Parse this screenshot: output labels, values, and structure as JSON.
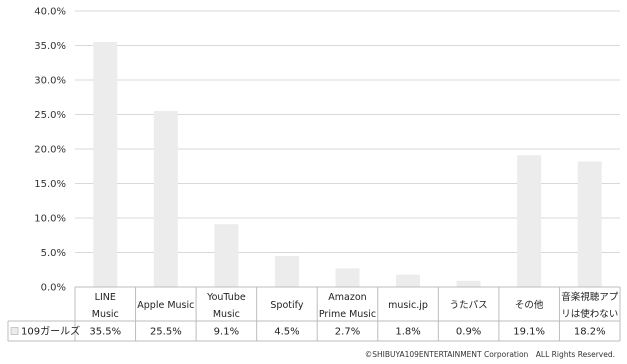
{
  "chart_data": {
    "type": "bar",
    "categories": [
      [
        "LINE",
        "Music"
      ],
      [
        "Apple Music"
      ],
      [
        "YouTube",
        "Music"
      ],
      [
        "Spotify"
      ],
      [
        "Amazon",
        "Prime Music"
      ],
      [
        "music.jp"
      ],
      [
        "うたパス"
      ],
      [
        "その他"
      ],
      [
        "音楽視聴アプ",
        "リは使わない"
      ]
    ],
    "series": [
      {
        "name": "109ガールズ",
        "values": [
          35.5,
          25.5,
          9.1,
          4.5,
          2.7,
          1.8,
          0.9,
          19.1,
          18.2
        ],
        "value_labels": [
          "35.5%",
          "25.5%",
          "9.1%",
          "4.5%",
          "2.7%",
          "1.8%",
          "0.9%",
          "19.1%",
          "18.2%"
        ]
      }
    ],
    "yticks": [
      "0.0%",
      "5.0%",
      "10.0%",
      "15.0%",
      "20.0%",
      "25.0%",
      "30.0%",
      "35.0%",
      "40.0%"
    ],
    "ylim": [
      0,
      40
    ],
    "grid": true,
    "legend": "data-table-row",
    "bar_color": "#ececec"
  },
  "footer": {
    "copyright": "©SHIBUYA109ENTERTAINMENT Corporation　ALL Rights Reserved."
  }
}
